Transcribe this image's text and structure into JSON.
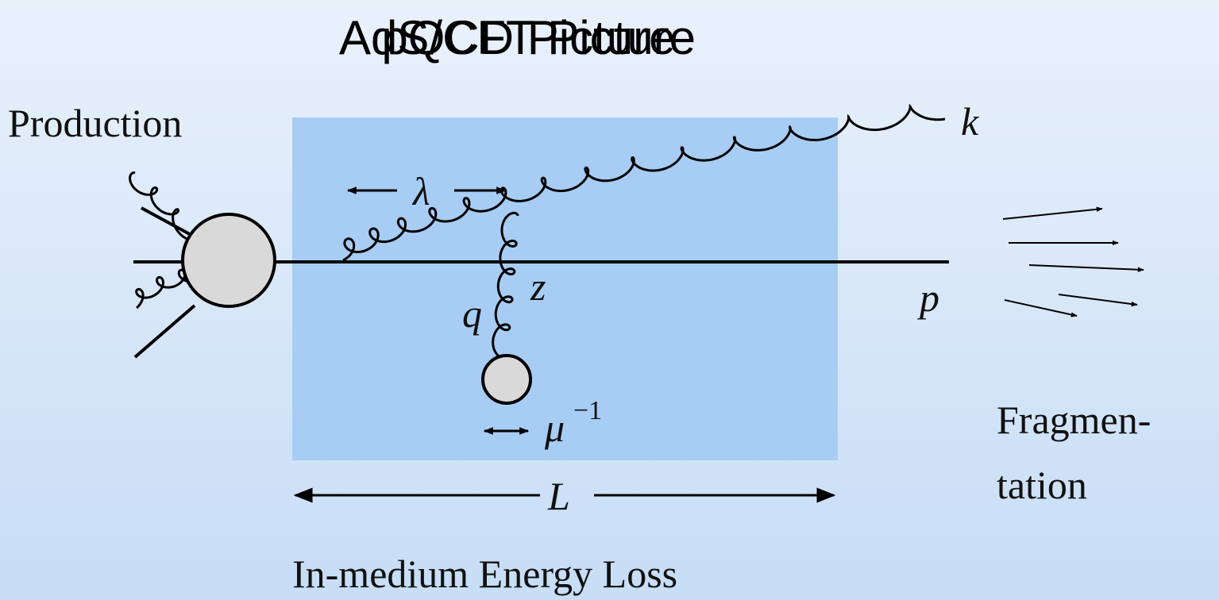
{
  "titles": [
    "A pQCD Picture",
    "AdS/CFT Picture"
  ],
  "labels": {
    "production": "Production",
    "k": "k",
    "lambda": "λ",
    "z": "z",
    "q": "q",
    "p": "p",
    "mu": "μ",
    "mu_exp": "−1",
    "length": "L",
    "fragmentation_1": "Fragmen-",
    "fragmentation_2": "tation",
    "caption": "In-medium Energy Loss"
  }
}
